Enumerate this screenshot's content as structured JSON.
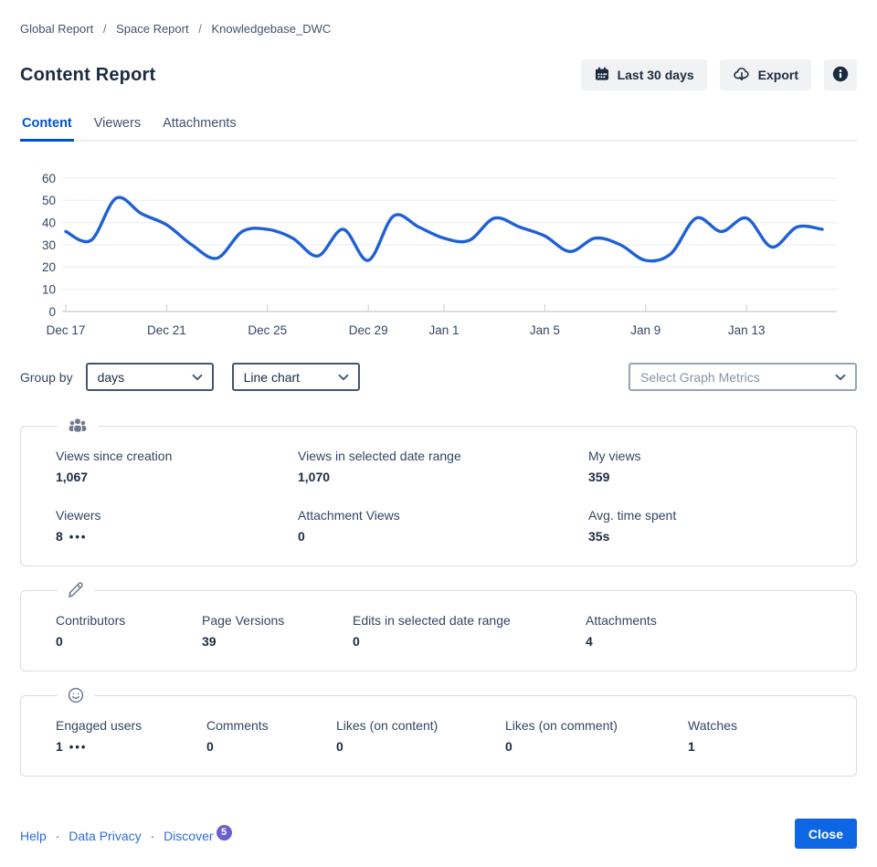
{
  "breadcrumb": {
    "items": [
      "Global Report",
      "Space Report",
      "Knowledgebase_DWC"
    ],
    "separator": "/"
  },
  "header": {
    "title": "Content Report",
    "date_range_button": "Last 30 days",
    "export_button": "Export"
  },
  "tabs": {
    "items": [
      "Content",
      "Viewers",
      "Attachments"
    ],
    "active": "Content"
  },
  "chart_data": {
    "type": "line",
    "x": [
      "Dec 17",
      "Dec 18",
      "Dec 19",
      "Dec 20",
      "Dec 21",
      "Dec 22",
      "Dec 23",
      "Dec 24",
      "Dec 25",
      "Dec 26",
      "Dec 27",
      "Dec 28",
      "Dec 29",
      "Dec 30",
      "Dec 31",
      "Jan 1",
      "Jan 2",
      "Jan 3",
      "Jan 4",
      "Jan 5",
      "Jan 6",
      "Jan 7",
      "Jan 8",
      "Jan 9",
      "Jan 10",
      "Jan 11",
      "Jan 12",
      "Jan 13",
      "Jan 14",
      "Jan 15",
      "Jan 16"
    ],
    "values": [
      36,
      32,
      51,
      44,
      39,
      30,
      24,
      36,
      37,
      33,
      25,
      37,
      23,
      43,
      38,
      33,
      32,
      42,
      38,
      34,
      27,
      33,
      30,
      23,
      26,
      42,
      36,
      42,
      29,
      38,
      37
    ],
    "x_tick_labels": [
      "Dec 17",
      "Dec 21",
      "Dec 25",
      "Dec 29",
      "Jan 1",
      "Jan 5",
      "Jan 9",
      "Jan 13"
    ],
    "x_tick_indices": [
      0,
      4,
      8,
      12,
      15,
      19,
      23,
      27
    ],
    "y_ticks": [
      0,
      10,
      20,
      30,
      40,
      50,
      60
    ],
    "ylim": [
      0,
      60
    ],
    "title": "",
    "xlabel": "",
    "ylabel": "",
    "grid": true,
    "legend": false,
    "line_color": "#1F61D4"
  },
  "controls": {
    "group_by_label": "Group by",
    "group_by_value": "days",
    "chart_type_value": "Line chart",
    "metrics_placeholder": "Select Graph Metrics"
  },
  "cards": [
    {
      "id": "views",
      "icon": "people-icon",
      "rows": [
        [
          {
            "label": "Views since creation",
            "value": "1,067"
          },
          {
            "label": "Views in selected date range",
            "value": "1,070"
          },
          {
            "label": "My views",
            "value": "359"
          }
        ],
        [
          {
            "label": "Viewers",
            "value": "8",
            "ellipsis": "•••"
          },
          {
            "label": "Attachment Views",
            "value": "0"
          },
          {
            "label": "Avg. time spent",
            "value": "35s"
          }
        ]
      ]
    },
    {
      "id": "edits",
      "icon": "pencil-icon",
      "rows": [
        [
          {
            "label": "Contributors",
            "value": "0"
          },
          {
            "label": "Page Versions",
            "value": "39"
          },
          {
            "label": "Edits in selected date range",
            "value": "0"
          },
          {
            "label": "Attachments",
            "value": "4"
          }
        ]
      ]
    },
    {
      "id": "engagement",
      "icon": "smiley-icon",
      "rows": [
        [
          {
            "label": "Engaged users",
            "value": "1",
            "ellipsis": "•••"
          },
          {
            "label": "Comments",
            "value": "0"
          },
          {
            "label": "Likes (on content)",
            "value": "0"
          },
          {
            "label": "Likes (on comment)",
            "value": "0"
          },
          {
            "label": "Watches",
            "value": "1"
          }
        ]
      ]
    }
  ],
  "footer": {
    "links": [
      "Help",
      "Data Privacy",
      "Discover"
    ],
    "separator": "·",
    "discover_badge": "5",
    "close_button": "Close"
  },
  "colors": {
    "accent_blue": "#0052CC",
    "chart_line_blue": "#1F61D4",
    "link_blue": "#2E6CE0",
    "badge_purple": "#6B5FCE",
    "close_button_blue": "#0D66E4",
    "text_dark": "#1C2B41",
    "text_secondary": "#344563"
  }
}
